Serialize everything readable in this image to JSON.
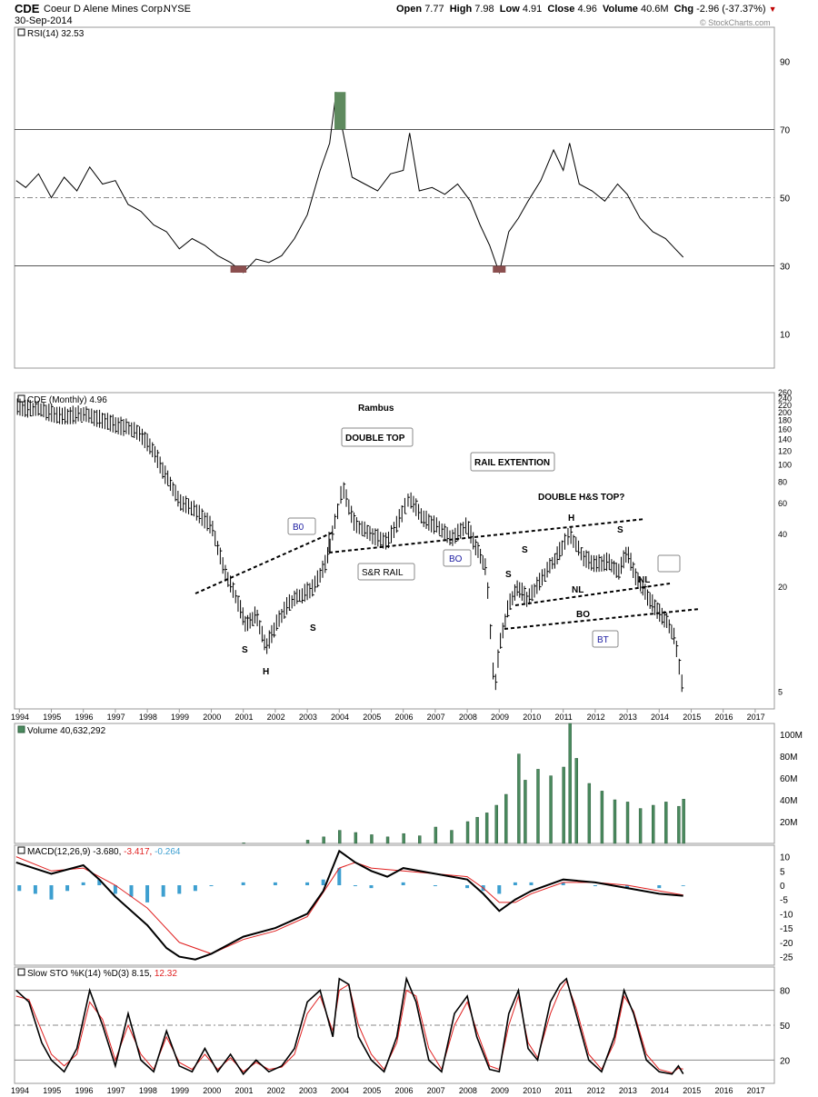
{
  "header": {
    "symbol": "CDE",
    "company": "Coeur D Alene Mines Corp.",
    "exchange": "NYSE",
    "date": "30-Sep-2014",
    "open_label": "Open",
    "open": "7.77",
    "high_label": "High",
    "high": "7.98",
    "low_label": "Low",
    "low": "4.91",
    "close_label": "Close",
    "close": "4.96",
    "volume_label": "Volume",
    "volume": "40.6M",
    "chg_label": "Chg",
    "chg": "-2.96 (-37.37%)",
    "watermark": "© StockCharts.com"
  },
  "colors": {
    "price": "#000000",
    "volume": "#4a8a5e",
    "macd_hist": "#3d9fd0",
    "macd_signal": "#e02020",
    "rsi_overbought_fill": "#5e8a5e",
    "rsi_oversold_fill": "#8b4f4f",
    "annotation_blue": "#1a1aa0",
    "down_marker": "#c00000"
  },
  "x_axis": {
    "years": [
      "1994",
      "1995",
      "1996",
      "1997",
      "1998",
      "1999",
      "2000",
      "2001",
      "2002",
      "2003",
      "2004",
      "2005",
      "2006",
      "2007",
      "2008",
      "2009",
      "2010",
      "2011",
      "2012",
      "2013",
      "2014",
      "2015",
      "2016",
      "2017"
    ]
  },
  "chart_data": [
    {
      "type": "line",
      "name": "rsi",
      "title": "RSI(14) 32.53",
      "ylim": [
        0,
        100
      ],
      "yticks": [
        10,
        30,
        50,
        70,
        90
      ],
      "hlines": [
        30,
        50,
        70
      ],
      "x": [
        1993.9,
        1994.2,
        1994.6,
        1995.0,
        1995.4,
        1995.8,
        1996.2,
        1996.6,
        1997.0,
        1997.4,
        1997.8,
        1998.2,
        1998.6,
        1999.0,
        1999.4,
        1999.8,
        2000.2,
        2000.6,
        2001.0,
        2001.4,
        2001.8,
        2002.2,
        2002.6,
        2003.0,
        2003.4,
        2003.7,
        2003.9,
        2004.1,
        2004.4,
        2004.8,
        2005.2,
        2005.6,
        2006.0,
        2006.2,
        2006.5,
        2006.9,
        2007.3,
        2007.7,
        2008.1,
        2008.4,
        2008.7,
        2009.0,
        2009.3,
        2009.6,
        2009.9,
        2010.3,
        2010.7,
        2011.0,
        2011.2,
        2011.5,
        2011.9,
        2012.3,
        2012.7,
        2013.0,
        2013.4,
        2013.8,
        2014.2,
        2014.5,
        2014.75
      ],
      "values": [
        55,
        53,
        57,
        50,
        56,
        52,
        59,
        54,
        55,
        48,
        46,
        42,
        40,
        35,
        38,
        36,
        33,
        31,
        28,
        32,
        31,
        33,
        38,
        45,
        58,
        66,
        81,
        70,
        56,
        54,
        52,
        57,
        58,
        69,
        52,
        53,
        51,
        54,
        49,
        42,
        36,
        28,
        40,
        44,
        49,
        55,
        64,
        58,
        66,
        54,
        52,
        49,
        54,
        51,
        44,
        40,
        38,
        35,
        32.53
      ]
    },
    {
      "type": "line",
      "name": "price",
      "title": "CDE (Monthly) 4.96",
      "log_scale": true,
      "ylim": [
        4,
        260
      ],
      "yticks": [
        5,
        20,
        40,
        60,
        80,
        100,
        120,
        140,
        160,
        180,
        200,
        220,
        240,
        260
      ],
      "x": [
        1993.9,
        1994.3,
        1994.8,
        1995.3,
        1995.8,
        1996.3,
        1996.8,
        1997.3,
        1997.8,
        1998.2,
        1998.6,
        1999.0,
        1999.5,
        2000.0,
        2000.4,
        2000.8,
        2001.1,
        2001.4,
        2001.7,
        2002.0,
        2002.4,
        2002.8,
        2003.2,
        2003.6,
        2003.9,
        2004.1,
        2004.5,
        2005.0,
        2005.5,
        2006.0,
        2006.2,
        2006.6,
        2007.0,
        2007.5,
        2008.0,
        2008.3,
        2008.6,
        2008.85,
        2009.0,
        2009.3,
        2009.6,
        2009.9,
        2010.3,
        2010.7,
        2011.0,
        2011.2,
        2011.6,
        2012.0,
        2012.4,
        2012.7,
        2013.0,
        2013.3,
        2013.6,
        2013.9,
        2014.2,
        2014.5,
        2014.75
      ],
      "values": [
        215,
        210,
        205,
        190,
        195,
        190,
        175,
        165,
        150,
        120,
        85,
        62,
        55,
        45,
        25,
        17,
        12,
        14,
        9,
        12,
        16,
        18,
        20,
        28,
        50,
        75,
        45,
        40,
        36,
        55,
        65,
        50,
        45,
        38,
        45,
        33,
        25,
        5,
        9,
        16,
        20,
        17,
        22,
        28,
        35,
        40,
        30,
        27,
        28,
        24,
        32,
        22,
        18,
        15,
        13,
        10,
        4.96
      ],
      "annotations": [
        "Rambus",
        "DOUBLE TOP",
        "RAIL EXTENTION",
        "DOUBLE H&S TOP?",
        "B0",
        "S&R RAIL",
        "BO",
        "S",
        "H",
        "S",
        "S",
        "H",
        "S",
        "S",
        "NL",
        "NL",
        "BO",
        "BT"
      ]
    },
    {
      "type": "bar",
      "name": "volume",
      "title": "Volume 40,632,292",
      "unit": "M",
      "ylim": [
        0,
        110
      ],
      "yticks": [
        20,
        40,
        60,
        80,
        100
      ],
      "x": [
        2001.0,
        2003.0,
        2003.5,
        2004.0,
        2004.5,
        2005.0,
        2005.5,
        2006.0,
        2006.5,
        2007.0,
        2007.5,
        2008.0,
        2008.3,
        2008.6,
        2008.9,
        2009.2,
        2009.6,
        2009.8,
        2010.2,
        2010.6,
        2011.0,
        2011.2,
        2011.4,
        2011.8,
        2012.2,
        2012.6,
        2013.0,
        2013.4,
        2013.8,
        2014.2,
        2014.6,
        2014.75
      ],
      "values": [
        0.5,
        3,
        6,
        12,
        10,
        8,
        6,
        9,
        7,
        15,
        12,
        20,
        24,
        28,
        35,
        45,
        82,
        58,
        68,
        62,
        70,
        110,
        78,
        55,
        48,
        40,
        38,
        32,
        35,
        38,
        34,
        40.6
      ]
    },
    {
      "type": "line",
      "name": "macd",
      "title": "MACD(12,26,9) -3.680, -3.417, -0.264",
      "ylim": [
        -28,
        14
      ],
      "yticks": [
        10,
        5,
        0,
        -5,
        -10,
        -15,
        -20,
        -25
      ],
      "series": [
        {
          "name": "MACD",
          "x": [
            1993.9,
            1995.0,
            1996.0,
            1996.5,
            1997.0,
            1998.0,
            1998.6,
            1999.0,
            1999.5,
            2000.0,
            2001.0,
            2002.0,
            2003.0,
            2003.5,
            2004.0,
            2004.5,
            2005.0,
            2005.5,
            2006.0,
            2007.0,
            2008.0,
            2008.5,
            2009.0,
            2009.5,
            2010.0,
            2011.0,
            2012.0,
            2013.0,
            2014.0,
            2014.75
          ],
          "values": [
            8,
            4,
            7,
            2,
            -4,
            -14,
            -22,
            -25,
            -26,
            -24,
            -18,
            -15,
            -10,
            -2,
            12,
            8,
            5,
            3,
            6,
            4,
            2,
            -3,
            -9,
            -5,
            -2,
            2,
            1,
            -1,
            -3,
            -3.68
          ]
        },
        {
          "name": "Signal",
          "x": [
            1993.9,
            1995.0,
            1996.0,
            1997.0,
            1998.0,
            1999.0,
            2000.0,
            2001.0,
            2002.0,
            2003.0,
            2004.0,
            2004.5,
            2005.0,
            2006.0,
            2007.0,
            2008.0,
            2008.5,
            2009.0,
            2009.5,
            2010.0,
            2011.0,
            2012.0,
            2013.0,
            2014.0,
            2014.75
          ],
          "values": [
            10,
            5,
            6,
            0,
            -8,
            -20,
            -24,
            -19,
            -16,
            -11,
            6,
            8,
            6,
            5,
            4,
            3,
            -1,
            -6,
            -6,
            -3,
            1,
            1,
            0,
            -2,
            -3.417
          ]
        },
        {
          "name": "Histogram",
          "x": [
            1994.0,
            1994.5,
            1995.0,
            1995.5,
            1996.0,
            1996.5,
            1997.0,
            1997.5,
            1998.0,
            1998.5,
            1999.0,
            1999.5,
            2000.0,
            2001.0,
            2002.0,
            2003.0,
            2003.5,
            2004.0,
            2004.5,
            2005.0,
            2006.0,
            2007.0,
            2008.0,
            2008.5,
            2009.0,
            2009.5,
            2010.0,
            2011.0,
            2012.0,
            2013.0,
            2014.0,
            2014.75
          ],
          "values": [
            -2,
            -3,
            -5,
            -2,
            1,
            2,
            -3,
            -4,
            -6,
            -4,
            -3,
            -2,
            0,
            1,
            1,
            1,
            2,
            6,
            0,
            -1,
            1,
            0,
            -1,
            -2,
            -3,
            1,
            1,
            1,
            0,
            -1,
            -1,
            -0.264
          ]
        }
      ]
    },
    {
      "type": "line",
      "name": "stochastic",
      "title": "Slow STO %K(14) %D(3) 8.15, 12.32",
      "ylim": [
        0,
        100
      ],
      "yticks": [
        20,
        50,
        80
      ],
      "hlines": [
        20,
        50,
        80
      ],
      "series": [
        {
          "name": "%K",
          "x": [
            1993.9,
            1994.3,
            1994.7,
            1995.0,
            1995.4,
            1995.8,
            1996.2,
            1996.6,
            1997.0,
            1997.4,
            1997.8,
            1998.2,
            1998.6,
            1999.0,
            1999.4,
            1999.8,
            2000.2,
            2000.6,
            2001.0,
            2001.4,
            2001.8,
            2002.2,
            2002.6,
            2003.0,
            2003.4,
            2003.8,
            2004.0,
            2004.3,
            2004.6,
            2005.0,
            2005.4,
            2005.8,
            2006.1,
            2006.4,
            2006.8,
            2007.2,
            2007.6,
            2008.0,
            2008.3,
            2008.7,
            2009.0,
            2009.3,
            2009.6,
            2009.9,
            2010.2,
            2010.6,
            2010.9,
            2011.1,
            2011.4,
            2011.8,
            2012.2,
            2012.6,
            2012.9,
            2013.2,
            2013.6,
            2014.0,
            2014.4,
            2014.6,
            2014.75
          ],
          "values": [
            80,
            70,
            35,
            20,
            10,
            30,
            80,
            50,
            15,
            60,
            20,
            10,
            45,
            15,
            10,
            30,
            10,
            25,
            8,
            20,
            10,
            15,
            30,
            70,
            80,
            40,
            90,
            85,
            40,
            20,
            10,
            40,
            90,
            70,
            20,
            10,
            60,
            75,
            40,
            12,
            10,
            60,
            80,
            30,
            20,
            70,
            85,
            90,
            60,
            20,
            10,
            40,
            80,
            60,
            20,
            10,
            8,
            15,
            8.15
          ]
        },
        {
          "name": "%D",
          "x": [
            1993.9,
            1994.3,
            1994.7,
            1995.0,
            1995.4,
            1995.8,
            1996.2,
            1996.6,
            1997.0,
            1997.4,
            1997.8,
            1998.2,
            1998.6,
            1999.0,
            1999.4,
            1999.8,
            2000.2,
            2000.6,
            2001.0,
            2001.4,
            2001.8,
            2002.2,
            2002.6,
            2003.0,
            2003.4,
            2003.8,
            2004.0,
            2004.3,
            2004.6,
            2005.0,
            2005.4,
            2005.8,
            2006.1,
            2006.4,
            2006.8,
            2007.2,
            2007.6,
            2008.0,
            2008.3,
            2008.7,
            2009.0,
            2009.3,
            2009.6,
            2009.9,
            2010.2,
            2010.6,
            2010.9,
            2011.1,
            2011.4,
            2011.8,
            2012.2,
            2012.6,
            2012.9,
            2013.2,
            2013.6,
            2014.0,
            2014.4,
            2014.6,
            2014.75
          ],
          "values": [
            75,
            72,
            45,
            25,
            15,
            25,
            70,
            55,
            20,
            50,
            25,
            12,
            40,
            18,
            12,
            25,
            12,
            22,
            10,
            18,
            12,
            14,
            25,
            60,
            75,
            45,
            80,
            85,
            50,
            25,
            12,
            35,
            80,
            75,
            30,
            12,
            50,
            70,
            45,
            15,
            12,
            50,
            75,
            35,
            22,
            60,
            80,
            88,
            65,
            25,
            12,
            35,
            75,
            62,
            25,
            12,
            9,
            13,
            12.32
          ]
        }
      ]
    }
  ]
}
